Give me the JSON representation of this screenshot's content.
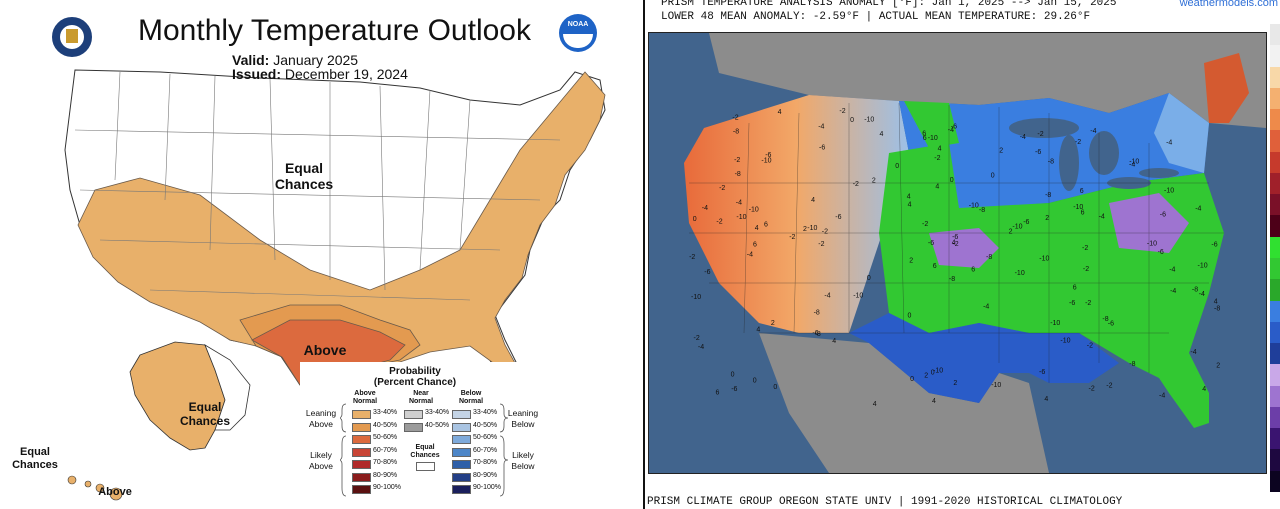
{
  "outlook": {
    "title": "Monthly Temperature Outlook",
    "valid_label": "Valid:",
    "valid_value": "January 2025",
    "issued_label": "Issued:",
    "issued_value": "December 19, 2024",
    "logos": [
      "doc-seal-icon",
      "noaa-logo-icon"
    ],
    "logo_text": "NOAA",
    "map_labels": {
      "equal_chances_conus": "Equal\nChances",
      "above_texas": "Above",
      "equal_chances_alaska": "Equal\nChances",
      "equal_chances_hawaii": "Equal\nChances",
      "above_hawaii": "Above"
    },
    "legend": {
      "title": "Probability",
      "subtitle": "(Percent Chance)",
      "columns": [
        "Above\nNormal",
        "Near\nNormal",
        "Below\nNormal"
      ],
      "above": [
        {
          "label": "33-40%",
          "color": "#e8b06a"
        },
        {
          "label": "40-50%",
          "color": "#e39a50"
        },
        {
          "label": "50-60%",
          "color": "#dc6a3e"
        },
        {
          "label": "60-70%",
          "color": "#c84536"
        },
        {
          "label": "70-80%",
          "color": "#b02a2a"
        },
        {
          "label": "80-90%",
          "color": "#8a1c1c"
        },
        {
          "label": "90-100%",
          "color": "#5a1010"
        }
      ],
      "near": [
        {
          "label": "33-40%",
          "color": "#cfcfcf"
        },
        {
          "label": "40-50%",
          "color": "#9b9b9b"
        }
      ],
      "below": [
        {
          "label": "33-40%",
          "color": "#c4d4e6"
        },
        {
          "label": "40-50%",
          "color": "#a9c4e2"
        },
        {
          "label": "50-60%",
          "color": "#7eaadb"
        },
        {
          "label": "60-70%",
          "color": "#4d86c8"
        },
        {
          "label": "70-80%",
          "color": "#2f5fa8"
        },
        {
          "label": "80-90%",
          "color": "#233f86"
        },
        {
          "label": "90-100%",
          "color": "#1a1f5c"
        }
      ],
      "equal_chances": "Equal\nChances",
      "leaning_above": "Leaning\nAbove",
      "likely_above": "Likely\nAbove",
      "leaning_below": "Leaning\nBelow",
      "likely_below": "Likely\nBelow"
    }
  },
  "analysis": {
    "header_line1": "PRISM TEMPERATURE ANALYSIS ANOMALY [°F]: Jan 1, 2025 --> Jan 15, 2025",
    "header_line2": "LOWER 48 MEAN ANOMALY: -2.59°F | ACTUAL MEAN TEMPERATURE: 29.26°F",
    "credit": "weathermodels.com",
    "footer": "PRISM CLIMATE GROUP OREGON STATE UNIV | 1991-2020 HISTORICAL CLIMATOLOGY",
    "colorbar": [
      "#e8e8e8",
      "#f2f2f2",
      "#f8d8a8",
      "#f4b070",
      "#ee8a4a",
      "#e0603a",
      "#c63a2c",
      "#a0202a",
      "#7a1028",
      "#4d0018",
      "#30e030",
      "#32c832",
      "#2aa82a",
      "#3a7ee0",
      "#2a5cc8",
      "#1f3e9a",
      "#c9a8e8",
      "#9e74d0",
      "#6c3ea8",
      "#3a1470",
      "#1e0840",
      "#0c0420"
    ],
    "map_colors": {
      "ocean": "#41648d",
      "land_outside": "#8c8c8c",
      "lakes": "#41648d"
    },
    "anomaly_labels": [
      "-10",
      "-8",
      "-6",
      "-4",
      "-2",
      "0",
      "2",
      "4",
      "6"
    ]
  }
}
